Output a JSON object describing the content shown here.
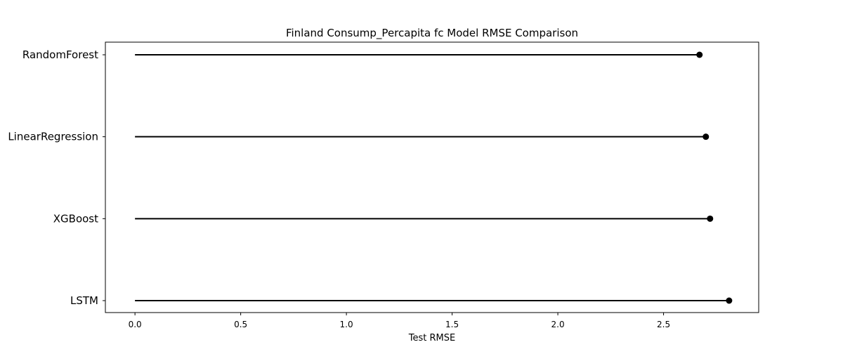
{
  "chart_data": {
    "type": "lollipop",
    "orientation": "horizontal",
    "title": "Finland Consump_Percapita fc Model RMSE Comparison",
    "xlabel": "Test RMSE",
    "ylabel": "",
    "categories": [
      "RandomForest",
      "LinearRegression",
      "XGBoost",
      "LSTM"
    ],
    "values": [
      2.67,
      2.7,
      2.72,
      2.81
    ],
    "xlim": [
      -0.14,
      2.95
    ],
    "xticks": [
      0.0,
      0.5,
      1.0,
      1.5,
      2.0,
      2.5
    ],
    "xtick_labels": [
      "0.0",
      "0.5",
      "1.0",
      "1.5",
      "2.0",
      "2.5"
    ],
    "grid": false,
    "color": "#000000"
  }
}
